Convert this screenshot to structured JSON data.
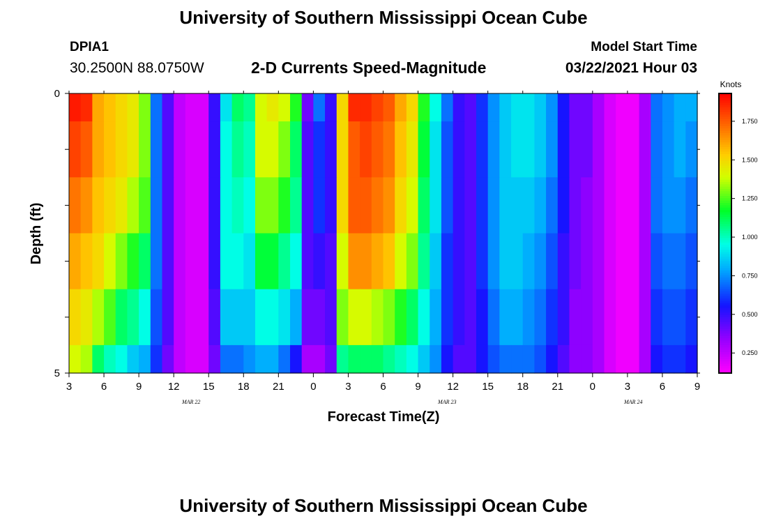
{
  "header": {
    "title": "University of Southern Mississippi Ocean Cube",
    "station": "DPIA1",
    "coords": "30.2500N 88.0750W",
    "plot_title": "2-D Currents Speed-Magnitude",
    "model_label": "Model Start Time",
    "model_time": "03/22/2021 Hour 03"
  },
  "footer": {
    "title": "University of Southern Mississippi Ocean Cube"
  },
  "chart_data": {
    "type": "heatmap",
    "title": "2-D Currents Speed-Magnitude",
    "xlabel": "Forecast Time(Z)",
    "ylabel": "Depth (ft)",
    "x_tick_labels": [
      "3",
      "6",
      "9",
      "12",
      "15",
      "18",
      "21",
      "0",
      "3",
      "6",
      "9",
      "12",
      "15",
      "18",
      "21",
      "0",
      "3",
      "6",
      "9"
    ],
    "date_labels": [
      {
        "label": "MAR 22",
        "hour_index": 10.5
      },
      {
        "label": "MAR 23",
        "hour_index": 32.5
      },
      {
        "label": "MAR 24",
        "hour_index": 48.5
      }
    ],
    "y_tick_labels": [
      "0",
      "5"
    ],
    "ylim": [
      0,
      5
    ],
    "hours_range": [
      0,
      54
    ],
    "colorbar": {
      "label": "Knots",
      "ticks": [
        "1.750",
        "1.500",
        "1.250",
        "1.000",
        "0.750",
        "0.500",
        "0.250"
      ],
      "tick_values": [
        1.75,
        1.5,
        1.25,
        1.0,
        0.75,
        0.5,
        0.25
      ],
      "range": [
        0.12,
        1.93
      ]
    },
    "depth_levels": [
      "0-0.5",
      "0.5-1.5",
      "1.5-2.5",
      "2.5-3.5",
      "3.5-4.5",
      "4.5-5"
    ],
    "speed_knots": [
      [
        1.88,
        1.85,
        1.6,
        1.55,
        1.5,
        1.45,
        1.3,
        0.7,
        0.45,
        0.25,
        0.2,
        0.2,
        0.5,
        0.9,
        1.1,
        1.05,
        1.4,
        1.45,
        1.4,
        1.2,
        0.4,
        0.7,
        0.5,
        1.5,
        1.85,
        1.85,
        1.8,
        1.75,
        1.6,
        1.5,
        1.2,
        0.95,
        0.7,
        0.5,
        0.45,
        0.6,
        0.75,
        0.85,
        0.9,
        0.9,
        0.85,
        0.75,
        0.55,
        0.4,
        0.4,
        0.3,
        0.2,
        0.15,
        0.15,
        0.3,
        0.7,
        0.75,
        0.8,
        0.8
      ],
      [
        1.8,
        1.75,
        1.6,
        1.55,
        1.5,
        1.45,
        1.3,
        0.7,
        0.45,
        0.25,
        0.2,
        0.2,
        0.5,
        0.95,
        1.05,
        1.0,
        1.4,
        1.4,
        1.3,
        1.1,
        0.45,
        0.6,
        0.5,
        1.5,
        1.75,
        1.8,
        1.75,
        1.7,
        1.55,
        1.45,
        1.15,
        0.9,
        0.65,
        0.5,
        0.45,
        0.6,
        0.75,
        0.85,
        0.9,
        0.9,
        0.85,
        0.75,
        0.55,
        0.4,
        0.4,
        0.3,
        0.2,
        0.15,
        0.15,
        0.3,
        0.7,
        0.75,
        0.8,
        0.75
      ],
      [
        1.7,
        1.65,
        1.55,
        1.5,
        1.45,
        1.35,
        1.25,
        0.7,
        0.45,
        0.25,
        0.2,
        0.2,
        0.5,
        0.95,
        1.0,
        0.95,
        1.3,
        1.3,
        1.2,
        1.05,
        0.45,
        0.6,
        0.5,
        1.5,
        1.75,
        1.75,
        1.7,
        1.65,
        1.5,
        1.4,
        1.1,
        0.9,
        0.65,
        0.5,
        0.45,
        0.6,
        0.75,
        0.85,
        0.85,
        0.85,
        0.8,
        0.7,
        0.55,
        0.4,
        0.35,
        0.3,
        0.2,
        0.15,
        0.15,
        0.3,
        0.7,
        0.75,
        0.75,
        0.7
      ],
      [
        1.6,
        1.55,
        1.5,
        1.4,
        1.3,
        1.2,
        1.1,
        0.7,
        0.45,
        0.25,
        0.2,
        0.2,
        0.5,
        0.95,
        0.95,
        0.9,
        1.15,
        1.15,
        1.05,
        0.95,
        0.45,
        0.5,
        0.45,
        1.4,
        1.65,
        1.65,
        1.6,
        1.55,
        1.4,
        1.3,
        1.05,
        0.85,
        0.6,
        0.5,
        0.45,
        0.6,
        0.75,
        0.85,
        0.85,
        0.8,
        0.75,
        0.65,
        0.5,
        0.4,
        0.35,
        0.3,
        0.2,
        0.15,
        0.15,
        0.3,
        0.65,
        0.7,
        0.7,
        0.65
      ],
      [
        1.5,
        1.45,
        1.35,
        1.25,
        1.1,
        1.05,
        0.95,
        0.65,
        0.45,
        0.25,
        0.2,
        0.2,
        0.45,
        0.85,
        0.85,
        0.85,
        0.95,
        0.95,
        0.9,
        0.8,
        0.4,
        0.4,
        0.45,
        1.3,
        1.4,
        1.4,
        1.35,
        1.3,
        1.2,
        1.1,
        0.95,
        0.8,
        0.6,
        0.5,
        0.45,
        0.55,
        0.7,
        0.8,
        0.8,
        0.75,
        0.7,
        0.6,
        0.5,
        0.35,
        0.35,
        0.3,
        0.2,
        0.15,
        0.15,
        0.3,
        0.6,
        0.65,
        0.65,
        0.6
      ],
      [
        1.4,
        1.35,
        1.1,
        1.0,
        0.95,
        0.85,
        0.8,
        0.6,
        0.4,
        0.25,
        0.2,
        0.2,
        0.4,
        0.7,
        0.7,
        0.75,
        0.8,
        0.8,
        0.7,
        0.55,
        0.3,
        0.3,
        0.4,
        1.05,
        1.1,
        1.1,
        1.1,
        1.05,
        1.0,
        0.95,
        0.85,
        0.75,
        0.55,
        0.45,
        0.45,
        0.55,
        0.65,
        0.7,
        0.7,
        0.7,
        0.65,
        0.55,
        0.45,
        0.35,
        0.35,
        0.3,
        0.2,
        0.15,
        0.15,
        0.3,
        0.55,
        0.6,
        0.6,
        0.55
      ]
    ]
  }
}
